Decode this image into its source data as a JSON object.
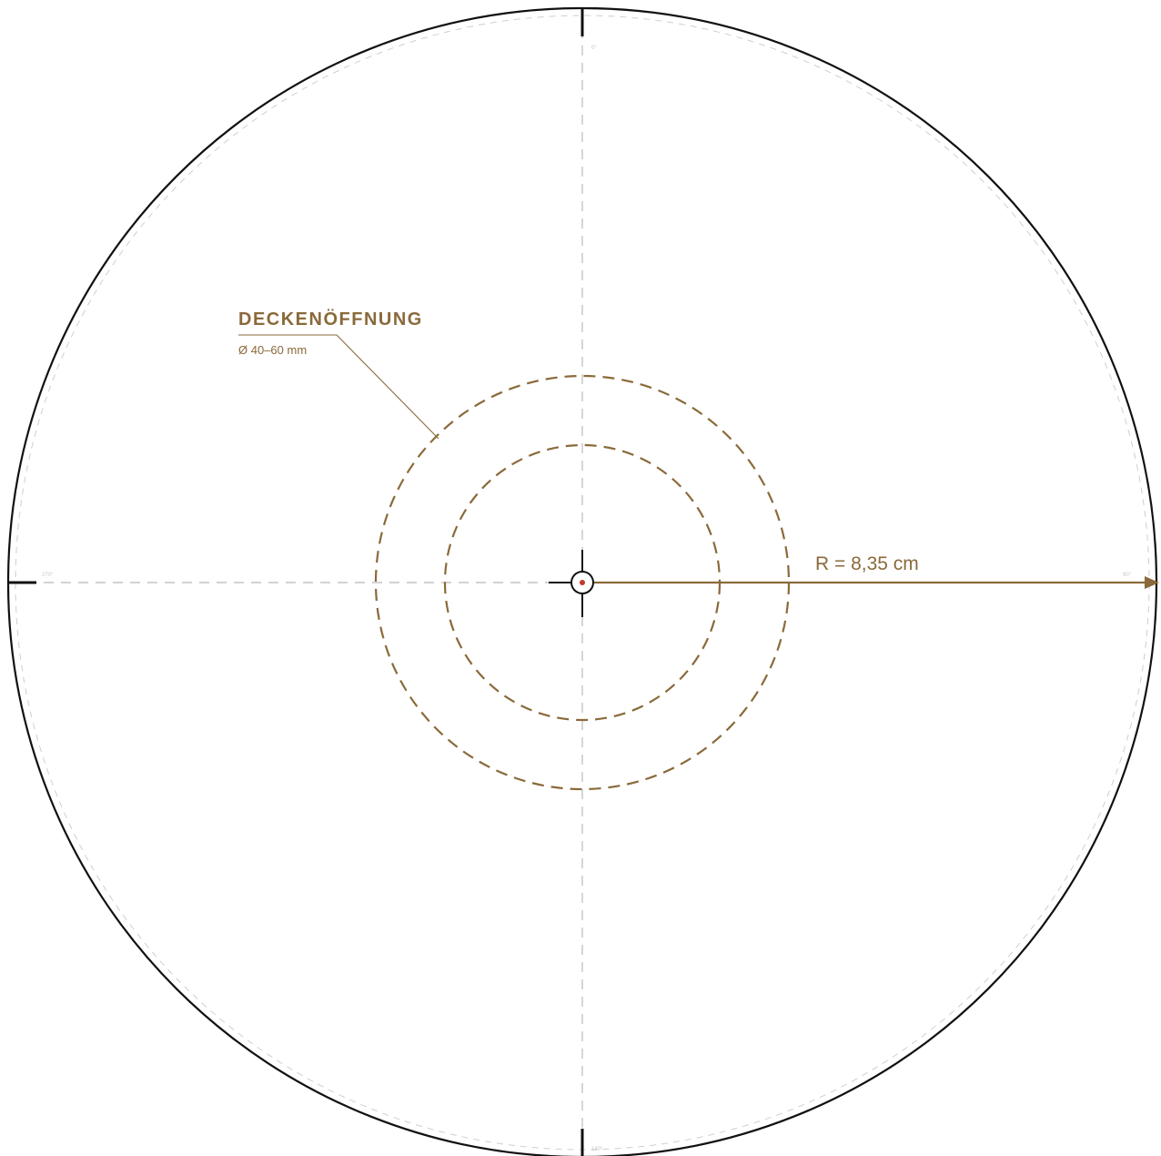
{
  "template": {
    "opening_title": "DECKENÖFFNUNG",
    "opening_size": "Ø 40–60 mm",
    "radius_label": "R = 8,35 cm",
    "angle_top": "0°",
    "angle_right": "90°",
    "angle_bottom": "180°",
    "angle_left": "270°"
  },
  "colors": {
    "accent": "#8a6a3a",
    "outline": "#111111",
    "guide": "#c4c4c4"
  }
}
